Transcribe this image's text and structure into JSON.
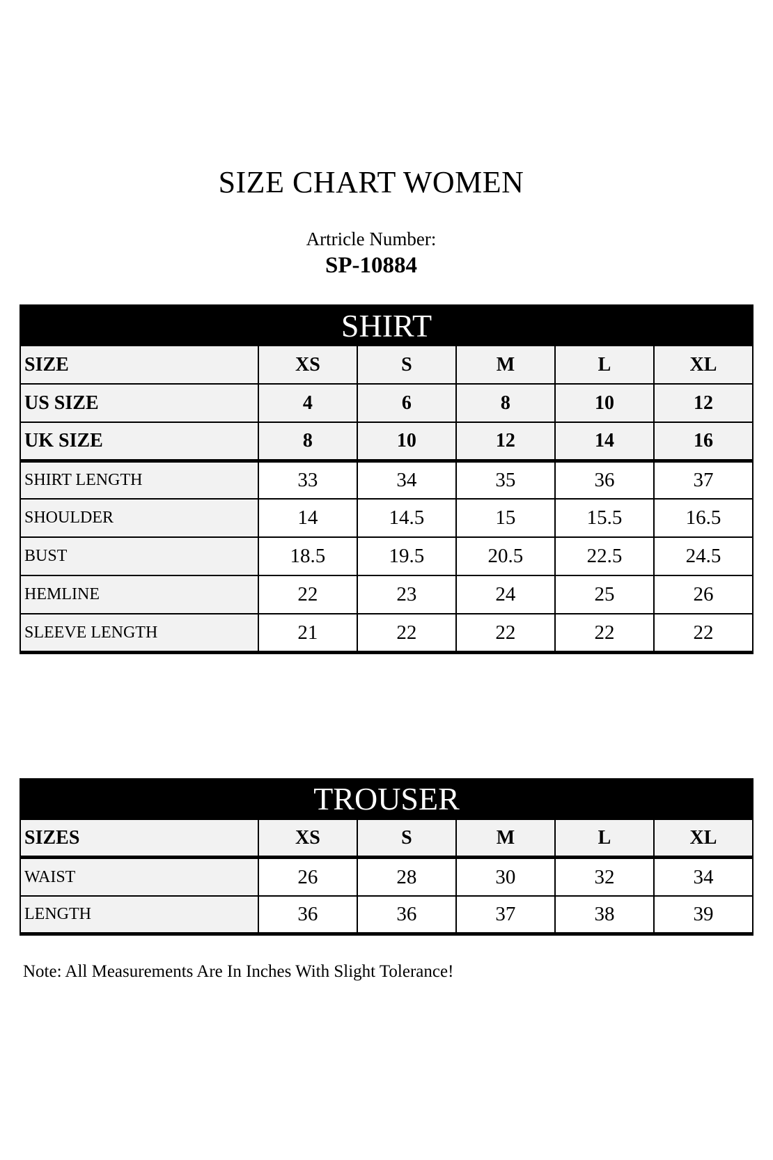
{
  "page": {
    "title": "SIZE CHART WOMEN",
    "article_label": "Artricle Number:",
    "article_number": "SP-10884",
    "note": "Note: All Measurements Are In Inches With Slight Tolerance!"
  },
  "colors": {
    "table_band_bg": "#000000",
    "table_band_text": "#ffffff",
    "shaded_cell_bg": "#f2f2f2",
    "plain_cell_bg": "#ffffff",
    "border": "#000000",
    "text": "#000000"
  },
  "shirt_table": {
    "title": "SHIRT",
    "size_rows": [
      {
        "label": "SIZE",
        "values": [
          "XS",
          "S",
          "M",
          "L",
          "XL"
        ]
      },
      {
        "label": "US SIZE",
        "values": [
          "4",
          "6",
          "8",
          "10",
          "12"
        ]
      },
      {
        "label": "UK SIZE",
        "values": [
          "8",
          "10",
          "12",
          "14",
          "16"
        ]
      }
    ],
    "measurement_rows": [
      {
        "label": "SHIRT LENGTH",
        "values": [
          "33",
          "34",
          "35",
          "36",
          "37"
        ]
      },
      {
        "label": "SHOULDER",
        "values": [
          "14",
          "14.5",
          "15",
          "15.5",
          "16.5"
        ]
      },
      {
        "label": "BUST",
        "values": [
          "18.5",
          "19.5",
          "20.5",
          "22.5",
          "24.5"
        ]
      },
      {
        "label": "HEMLINE",
        "values": [
          "22",
          "23",
          "24",
          "25",
          "26"
        ]
      },
      {
        "label": "SLEEVE LENGTH",
        "values": [
          "21",
          "22",
          "22",
          "22",
          "22"
        ]
      }
    ]
  },
  "trouser_table": {
    "title": "TROUSER",
    "size_rows": [
      {
        "label": "SIZES",
        "values": [
          "XS",
          "S",
          "M",
          "L",
          "XL"
        ]
      }
    ],
    "measurement_rows": [
      {
        "label": "WAIST",
        "values": [
          "26",
          "28",
          "30",
          "32",
          "34"
        ]
      },
      {
        "label": "LENGTH",
        "values": [
          "36",
          "36",
          "37",
          "38",
          "39"
        ]
      }
    ]
  }
}
